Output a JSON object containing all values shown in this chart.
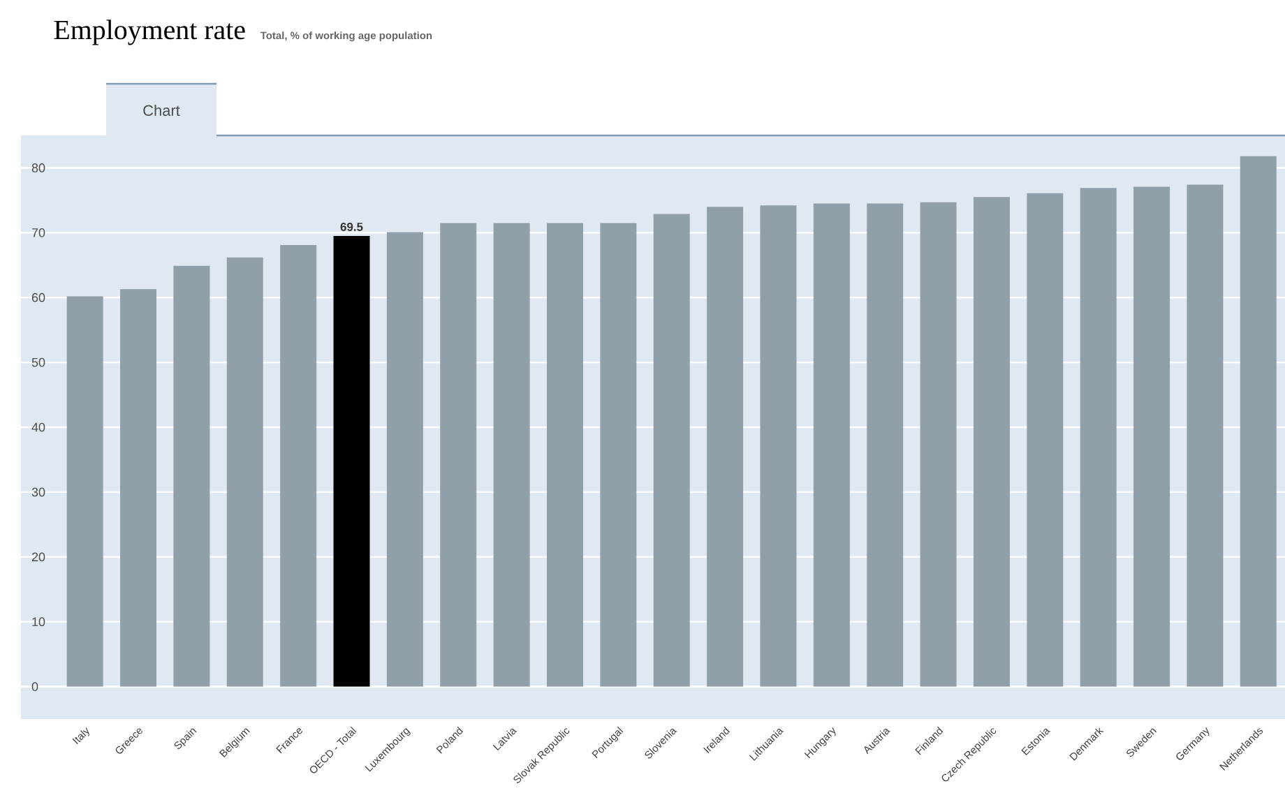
{
  "chart_data": {
    "type": "bar",
    "title": "Employment rate",
    "subtitle": "Total, % of working age population",
    "annotations": [
      "Chart"
    ],
    "categories": [
      "Italy",
      "Greece",
      "Spain",
      "Belgium",
      "France",
      "OECD - Total",
      "Luxembourg",
      "Poland",
      "Latvia",
      "Slovak Republic",
      "Portugal",
      "Slovenia",
      "Ireland",
      "Lithuania",
      "Hungary",
      "Austria",
      "Finland",
      "Czech Republic",
      "Estonia",
      "Denmark",
      "Sweden",
      "Germany",
      "Netherlands"
    ],
    "values": [
      60.2,
      61.3,
      64.9,
      66.2,
      68.1,
      69.5,
      70.1,
      71.5,
      71.5,
      71.5,
      71.5,
      72.9,
      74.0,
      74.2,
      74.5,
      74.5,
      74.7,
      75.5,
      76.1,
      76.9,
      77.1,
      77.4,
      81.8
    ],
    "value_labels": [
      null,
      null,
      null,
      null,
      null,
      "69.5",
      null,
      null,
      null,
      null,
      null,
      null,
      null,
      null,
      null,
      null,
      null,
      null,
      null,
      null,
      null,
      null,
      null
    ],
    "colors": [
      "#8fa0ab",
      "#8fa0ab",
      "#8fa0ab",
      "#8fa0ab",
      "#8fa0ab",
      "#000000",
      "#8fa0ab",
      "#8fa0ab",
      "#8fa0ab",
      "#8fa0ab",
      "#8fa0ab",
      "#8fa0ab",
      "#8fa0ab",
      "#8fa0ab",
      "#8fa0ab",
      "#8fa0ab",
      "#8fa0ab",
      "#8fa0ab",
      "#8fa0ab",
      "#8fa0ab",
      "#8fa0ab",
      "#8fa0ab",
      "#8fa0ab"
    ],
    "ylim": [
      -5,
      85
    ],
    "yticks": [
      0,
      10,
      20,
      30,
      40,
      50,
      60,
      70,
      80
    ],
    "grid": "y"
  }
}
